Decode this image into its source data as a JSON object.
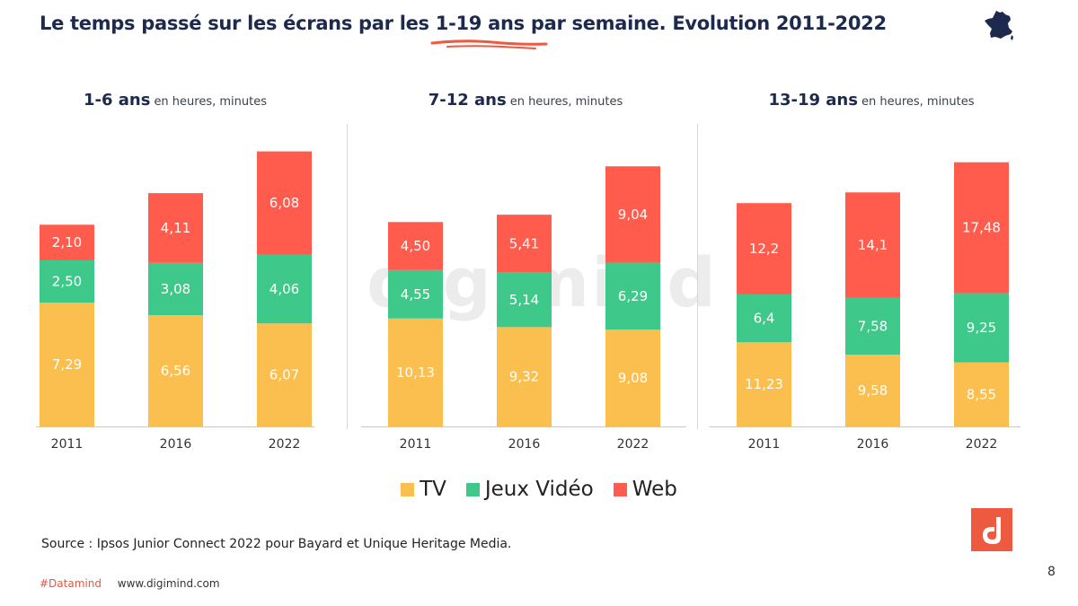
{
  "title": {
    "prefix": "Le temps passé sur les écrans par ",
    "highlight": "les 1-19 ans",
    "suffix": " par semaine. Evolution 2011-2022"
  },
  "icons": {
    "country": "france-map-icon",
    "logo": "digimind-logo-icon"
  },
  "colors": {
    "tv": "#fbbf4f",
    "jeux": "#3ec98b",
    "web": "#ff5c4d",
    "title": "#1d2a4d",
    "accent": "#e8553f"
  },
  "watermark": "digimind",
  "chart_data": [
    {
      "type": "bar",
      "stacked": true,
      "title": "1-6 ans",
      "subtitle": "en heures, minutes",
      "categories": [
        "2011",
        "2016",
        "2022"
      ],
      "series": [
        {
          "name": "TV",
          "values": [
            7.29,
            6.56,
            6.07
          ],
          "labels": [
            "7,29",
            "6,56",
            "6,07"
          ]
        },
        {
          "name": "Jeux Vidéo",
          "values": [
            2.5,
            3.08,
            4.06
          ],
          "labels": [
            "2,50",
            "3,08",
            "4,06"
          ]
        },
        {
          "name": "Web",
          "values": [
            2.1,
            4.11,
            6.08
          ],
          "labels": [
            "2,10",
            "4,11",
            "6,08"
          ]
        }
      ]
    },
    {
      "type": "bar",
      "stacked": true,
      "title": "7-12 ans",
      "subtitle": "en heures, minutes",
      "categories": [
        "2011",
        "2016",
        "2022"
      ],
      "series": [
        {
          "name": "TV",
          "values": [
            10.13,
            9.32,
            9.08
          ],
          "labels": [
            "10,13",
            "9,32",
            "9,08"
          ]
        },
        {
          "name": "Jeux Vidéo",
          "values": [
            4.55,
            5.14,
            6.29
          ],
          "labels": [
            "4,55",
            "5,14",
            "6,29"
          ]
        },
        {
          "name": "Web",
          "values": [
            4.5,
            5.41,
            9.04
          ],
          "labels": [
            "4,50",
            "5,41",
            "9,04"
          ]
        }
      ]
    },
    {
      "type": "bar",
      "stacked": true,
      "title": "13-19 ans",
      "subtitle": "en heures, minutes",
      "categories": [
        "2011",
        "2016",
        "2022"
      ],
      "series": [
        {
          "name": "TV",
          "values": [
            11.23,
            9.58,
            8.55
          ],
          "labels": [
            "11,23",
            "9,58",
            "8,55"
          ]
        },
        {
          "name": "Jeux Vidéo",
          "values": [
            6.4,
            7.58,
            9.25
          ],
          "labels": [
            "6,4",
            "7,58",
            "9,25"
          ]
        },
        {
          "name": "Web",
          "values": [
            12.2,
            14.1,
            17.48
          ],
          "labels": [
            "12,2",
            "14,1",
            "17,48"
          ]
        }
      ]
    }
  ],
  "legend": [
    "TV",
    "Jeux Vidéo",
    "Web"
  ],
  "source": "Source : Ipsos Junior Connect 2022 pour Bayard et Unique Heritage Media.",
  "footer": {
    "hashtag": "#Datamind",
    "website": "www.digimind.com"
  },
  "page_number": "8"
}
